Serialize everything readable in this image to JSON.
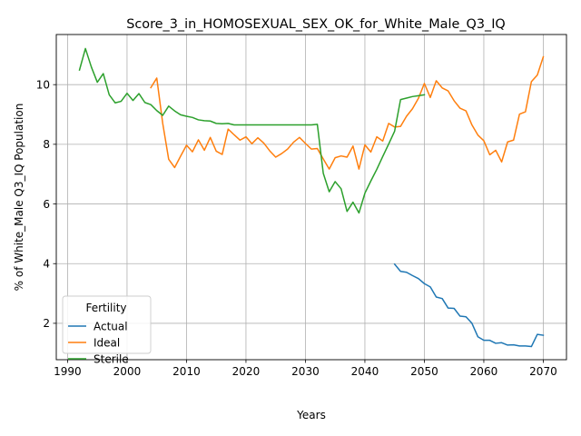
{
  "chart_data": {
    "type": "line",
    "title": "Score_3_in_HOMOSEXUAL_SEX_OK_for_White_Male_Q3_IQ",
    "xlabel": "Years",
    "ylabel": "% of White_Male Q3_IQ Population",
    "xlim": [
      1988.1,
      2073.9
    ],
    "ylim": [
      0.78,
      11.68
    ],
    "xticks": [
      1990,
      2000,
      2010,
      2020,
      2030,
      2040,
      2050,
      2060,
      2070
    ],
    "yticks": [
      2,
      4,
      6,
      8,
      10
    ],
    "grid": true,
    "legend": {
      "title": "Fertility",
      "position": "lower-left"
    },
    "series": [
      {
        "name": "Actual",
        "color": "#1f77b4",
        "x": [
          2045,
          2046,
          2047,
          2048,
          2049,
          2050,
          2051,
          2052,
          2053,
          2054,
          2055,
          2056,
          2057,
          2058,
          2059,
          2060,
          2061,
          2062,
          2063,
          2064,
          2065,
          2066,
          2067,
          2068,
          2069,
          2070
        ],
        "y": [
          3.98,
          3.74,
          3.71,
          3.6,
          3.5,
          3.33,
          3.22,
          2.88,
          2.83,
          2.51,
          2.5,
          2.24,
          2.22,
          2.0,
          1.55,
          1.43,
          1.43,
          1.33,
          1.35,
          1.27,
          1.28,
          1.24,
          1.24,
          1.22,
          1.63,
          1.6
        ]
      },
      {
        "name": "Ideal",
        "color": "#ff7f0e",
        "x": [
          2004,
          2005,
          2006,
          2007,
          2008,
          2009,
          2010,
          2011,
          2012,
          2013,
          2014,
          2015,
          2016,
          2017,
          2018,
          2019,
          2020,
          2021,
          2022,
          2023,
          2024,
          2025,
          2026,
          2027,
          2028,
          2029,
          2030,
          2031,
          2032,
          2033,
          2034,
          2035,
          2036,
          2037,
          2038,
          2039,
          2040,
          2041,
          2042,
          2043,
          2044,
          2045,
          2046,
          2047,
          2048,
          2049,
          2050,
          2051,
          2052,
          2053,
          2054,
          2055,
          2056,
          2057,
          2058,
          2059,
          2060,
          2061,
          2062,
          2063,
          2064,
          2065,
          2066,
          2067,
          2068,
          2069,
          2070
        ],
        "y": [
          9.9,
          10.22,
          8.7,
          7.5,
          7.22,
          7.6,
          7.97,
          7.75,
          8.15,
          7.8,
          8.23,
          7.77,
          7.66,
          8.51,
          8.32,
          8.14,
          8.25,
          8.02,
          8.22,
          8.04,
          7.78,
          7.57,
          7.69,
          7.84,
          8.07,
          8.23,
          8.03,
          7.84,
          7.86,
          7.51,
          7.17,
          7.55,
          7.61,
          7.57,
          7.94,
          7.17,
          7.98,
          7.74,
          8.25,
          8.11,
          8.7,
          8.58,
          8.6,
          8.94,
          9.19,
          9.54,
          10.04,
          9.57,
          10.13,
          9.89,
          9.79,
          9.46,
          9.21,
          9.12,
          8.65,
          8.31,
          8.12,
          7.65,
          7.8,
          7.41,
          8.08,
          8.14,
          9.01,
          9.09,
          10.1,
          10.32,
          10.93
        ]
      },
      {
        "name": "Sterile",
        "color": "#2ca02c",
        "x": [
          1992,
          1993,
          1994,
          1995,
          1996,
          1997,
          1998,
          1999,
          2000,
          2001,
          2002,
          2003,
          2004,
          2005,
          2006,
          2007,
          2008,
          2009,
          2010,
          2011,
          2012,
          2013,
          2014,
          2015,
          2016,
          2017,
          2018,
          2019,
          2020,
          2021,
          2022,
          2023,
          2024,
          2025,
          2026,
          2027,
          2028,
          2029,
          2030,
          2031,
          2032,
          2033,
          2034,
          2035,
          2036,
          2037,
          2038,
          2039,
          2040,
          2041,
          2042,
          2043,
          2044,
          2045,
          2046,
          2047,
          2048,
          2049,
          2050
        ],
        "y": [
          10.49,
          11.21,
          10.59,
          10.08,
          10.37,
          9.66,
          9.39,
          9.44,
          9.71,
          9.47,
          9.7,
          9.4,
          9.33,
          9.13,
          8.97,
          9.28,
          9.12,
          8.99,
          8.94,
          8.9,
          8.82,
          8.79,
          8.78,
          8.7,
          8.69,
          8.7,
          8.65,
          8.65,
          8.65,
          8.65,
          8.65,
          8.65,
          8.65,
          8.65,
          8.65,
          8.65,
          8.65,
          8.65,
          8.65,
          8.65,
          8.67,
          7.03,
          6.41,
          6.75,
          6.51,
          5.75,
          6.06,
          5.7,
          6.36,
          6.77,
          7.16,
          7.59,
          8.01,
          8.44,
          9.5,
          9.55,
          9.6,
          9.63,
          9.66
        ]
      }
    ]
  }
}
